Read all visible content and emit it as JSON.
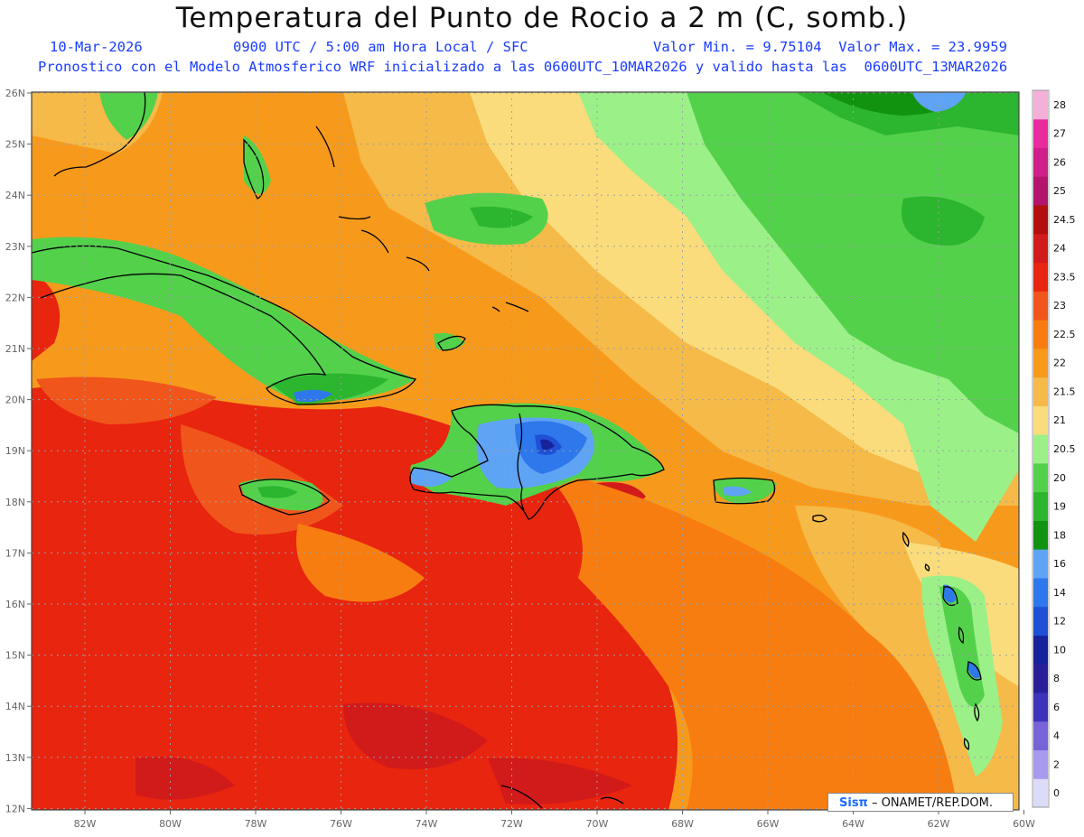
{
  "title": "Temperatura del Punto de Rocio a 2 m (C, somb.)",
  "subtitle": {
    "date": "10-Mar-2026",
    "time": "0900 UTC / 5:00 am Hora Local / SFC",
    "minmax": "Valor Min. = 9.75104  Valor Max. = 23.9959"
  },
  "model_line": "Pronostico con el Modelo Atmosferico WRF inicializado a las 0600UTC_10MAR2026 y valido hasta las  0600UTC_13MAR2026",
  "credit": {
    "brand": "Sisπ",
    "org": "– ONAMET/REP.DOM."
  },
  "lat_labels": [
    "26N",
    "25N",
    "24N",
    "23N",
    "22N",
    "21N",
    "20N",
    "19N",
    "18N",
    "17N",
    "16N",
    "15N",
    "14N",
    "13N",
    "12N"
  ],
  "lon_labels": [
    "82W",
    "80W",
    "78W",
    "76W",
    "74W",
    "72W",
    "70W",
    "68W",
    "66W",
    "64W",
    "62W",
    "60W"
  ],
  "legend": {
    "labels": [
      "28",
      "27",
      "26",
      "25",
      "24.5",
      "24",
      "23.5",
      "23",
      "22.5",
      "22",
      "21.5",
      "21",
      "20.5",
      "20",
      "19",
      "18",
      "16",
      "14",
      "12",
      "10",
      "8",
      "6",
      "4",
      "2",
      "0"
    ],
    "colors": [
      "#f4b0d8",
      "#ea2ba0",
      "#d01f8a",
      "#b3146c",
      "#b30e0e",
      "#d11a1a",
      "#e8250f",
      "#f0561b",
      "#f77d10",
      "#f79a1c",
      "#f5ba48",
      "#fadc7c",
      "#9cf088",
      "#53d14b",
      "#2cb52e",
      "#129310",
      "#5fa3f5",
      "#2e78ec",
      "#1f50d6",
      "#17239a",
      "#2a1f99",
      "#3e33ba",
      "#7963d8",
      "#a799ee",
      "#dcdcf8"
    ]
  },
  "colors": {
    "title": "#111111",
    "subtitle": "#1a3cff",
    "grid": "#9aa0a6"
  }
}
